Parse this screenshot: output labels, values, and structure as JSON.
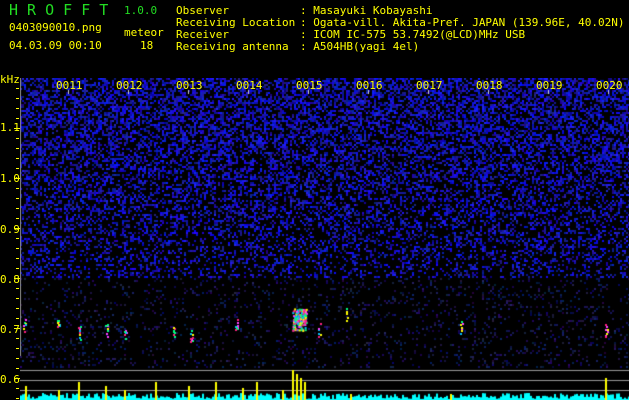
{
  "app": {
    "name": "H R O F F T",
    "version": "1.0.0"
  },
  "file": {
    "name": "0403090010.png",
    "datetime": "04.03.09 00:10"
  },
  "meteor": {
    "label": "meteor",
    "count": "18"
  },
  "info": [
    {
      "label": "Observer",
      "value": "Masayuki Kobayashi"
    },
    {
      "label": "Receiving Location",
      "value": "Ogata-vill. Akita-Pref. JAPAN (139.96E, 40.02N)"
    },
    {
      "label": "Receiver",
      "value": "ICOM IC-575 53.7492(@LCD)MHz USB"
    },
    {
      "label": "Receiving antenna",
      "value": "A504HB(yagi 4el)"
    }
  ],
  "axis": {
    "unit": "kHz",
    "freq_labels": [
      "1.1",
      "1.0",
      "0.9",
      "0.8",
      "0.7",
      "0.6"
    ],
    "time_labels": [
      "0011",
      "0012",
      "0013",
      "0014",
      "0015",
      "0016",
      "0017",
      "0018",
      "0019",
      "0020"
    ]
  },
  "colors": {
    "text": "#ffff00",
    "title": "#22dd22",
    "noise": "#2233ff",
    "bars": "#00ffff",
    "spikes": "#ffff00"
  }
}
